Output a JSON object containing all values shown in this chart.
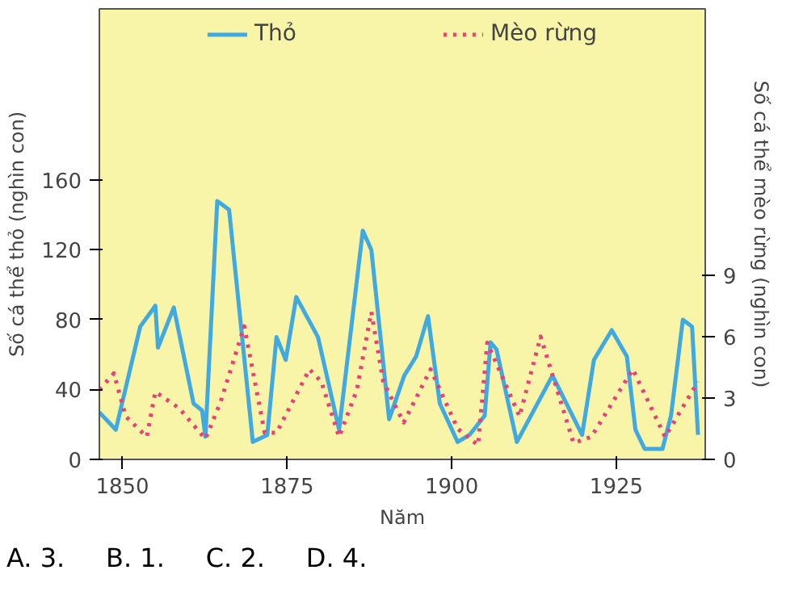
{
  "chart_data": {
    "type": "line",
    "xlabel": "Năm",
    "ylabel": "Số cá thể thỏ (nghìn con)",
    "y2label": "Số cá thể mèo rừng (nghìn con)",
    "xlim": [
      1846.5,
      1938.5
    ],
    "xticks": [
      1850,
      1875,
      1900,
      1925
    ],
    "ylim": [
      0,
      258
    ],
    "yticks": [
      0,
      40,
      80,
      120,
      160
    ],
    "y2lim": [
      0,
      22
    ],
    "y2ticks": [
      0,
      3,
      6,
      9
    ],
    "series": [
      {
        "name": "Thỏ",
        "color": "#3fa9e0",
        "line_style": "solid",
        "x": [
          1846.5,
          1849,
          1852.7,
          1855,
          1855.4,
          1857.8,
          1860.8,
          1862.1,
          1862.6,
          1864.4,
          1866.2,
          1869.8,
          1872,
          1873.4,
          1874.8,
          1876.4,
          1879.7,
          1882.9,
          1886.5,
          1887.8,
          1890.5,
          1892.8,
          1894.6,
          1896.4,
          1898.2,
          1900.9,
          1902.7,
          1905,
          1905.9,
          1906.8,
          1909.9,
          1915.3,
          1919.8,
          1921.6,
          1924.3,
          1926.6,
          1927.9,
          1929.3,
          1932,
          1933.3,
          1935.1,
          1936.5,
          1937.4
        ],
        "values": [
          27,
          17,
          76,
          88,
          64,
          87,
          32,
          28,
          13,
          148,
          143,
          10,
          14,
          70,
          57,
          93,
          70,
          17,
          131,
          120,
          23,
          48,
          59,
          82,
          32,
          10,
          14,
          25,
          67,
          63,
          10,
          48,
          14,
          57,
          74,
          59,
          17,
          6,
          6,
          25,
          80,
          76,
          14
        ]
      },
      {
        "name": "Mèo rừng",
        "color": "#e8407a",
        "line_style": "dotted",
        "axis": "y2",
        "x": [
          1846.5,
          1848.7,
          1850.5,
          1853.7,
          1855,
          1858.6,
          1862.6,
          1864.9,
          1868.5,
          1871.6,
          1873.4,
          1878.4,
          1880.2,
          1882.9,
          1885.6,
          1887.8,
          1889.6,
          1892.7,
          1896.8,
          1900.9,
          1904,
          1905.4,
          1910.3,
          1913.5,
          1918.5,
          1921.2,
          1927.5,
          1932.4,
          1937.4
        ],
        "values": [
          3.4,
          4.2,
          2.1,
          1.1,
          3.3,
          2.5,
          1.0,
          2.8,
          6.5,
          1.3,
          1.3,
          4.4,
          3.8,
          1.1,
          3.4,
          7.2,
          3.8,
          1.8,
          4.4,
          1.5,
          0.7,
          5.7,
          2.1,
          6.0,
          0.8,
          1.1,
          4.4,
          1.1,
          3.8
        ]
      }
    ],
    "legend": "top",
    "grid": false,
    "marker": "none",
    "annotations": [
      "A. 3.     B. 1.     C. 2.     D. 4."
    ]
  }
}
